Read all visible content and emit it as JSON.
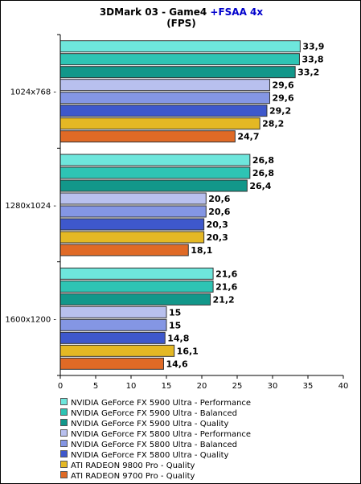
{
  "chart_data": {
    "type": "bar",
    "orientation": "horizontal",
    "title": {
      "prefix": "3DMark 03 - Game4 ",
      "highlight": "+FSAA 4x",
      "subtitle": "(FPS)"
    },
    "categories": [
      "1024x768",
      "1280x1024",
      "1600x1200"
    ],
    "category_tick_labels": [
      "1024x768  -",
      "1280x1024 -",
      "1600x1200 -"
    ],
    "xlim": [
      0,
      40
    ],
    "xticks": [
      0,
      5,
      10,
      15,
      20,
      25,
      30,
      35,
      40
    ],
    "grid": false,
    "legend_position": "bottom",
    "series": [
      {
        "name": "NVIDIA GeForce FX 5900 Ultra - Performance",
        "color": "#6ee6dc",
        "values": [
          33.9,
          26.8,
          21.6
        ],
        "labels": [
          "33,9",
          "26,8",
          "21,6"
        ]
      },
      {
        "name": "NVIDIA GeForce FX 5900 Ultra - Balanced",
        "color": "#2ec4b4",
        "values": [
          33.8,
          26.8,
          21.6
        ],
        "labels": [
          "33,8",
          "26,8",
          "21,6"
        ]
      },
      {
        "name": "NVIDIA GeForce FX 5900 Ultra - Quality",
        "color": "#12978a",
        "values": [
          33.2,
          26.4,
          21.2
        ],
        "labels": [
          "33,2",
          "26,4",
          "21,2"
        ]
      },
      {
        "name": "NVIDIA GeForce FX 5800 Ultra - Performance",
        "color": "#b8c0ee",
        "values": [
          29.6,
          20.6,
          15
        ],
        "labels": [
          "29,6",
          "20,6",
          "15"
        ]
      },
      {
        "name": "NVIDIA GeForce FX 5800 Ultra - Balanced",
        "color": "#8496e4",
        "values": [
          29.6,
          20.6,
          15
        ],
        "labels": [
          "29,6",
          "20,6",
          "15"
        ]
      },
      {
        "name": "NVIDIA GeForce FX 5800 Ultra - Quality",
        "color": "#3e58cc",
        "values": [
          29.2,
          20.3,
          14.8
        ],
        "labels": [
          "29,2",
          "20,3",
          "14,8"
        ]
      },
      {
        "name": "ATI RADEON 9800 Pro - Quality",
        "color": "#e4b824",
        "values": [
          28.2,
          20.3,
          16.1
        ],
        "labels": [
          "28,2",
          "20,3",
          "16,1"
        ]
      },
      {
        "name": "ATI RADEON 9700 Pro - Quality",
        "color": "#e06a26",
        "values": [
          24.7,
          18.1,
          14.6
        ],
        "labels": [
          "24,7",
          "18,1",
          "14,6"
        ]
      }
    ]
  }
}
